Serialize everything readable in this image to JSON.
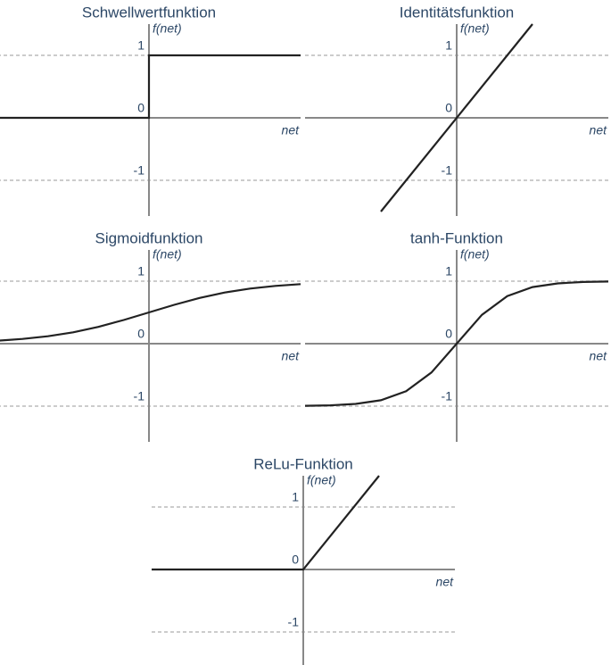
{
  "chart_data": [
    {
      "type": "line",
      "title": "Schwellwertfunktion",
      "y_label": "f(net)",
      "x_label": "net",
      "x": [
        -3,
        0,
        0,
        3
      ],
      "values": [
        0,
        0,
        1,
        1
      ],
      "color": "#222222",
      "xlim": [
        -3,
        3
      ],
      "ylim": [
        -1.5,
        1.5
      ],
      "yticks": [
        -1,
        0,
        1
      ],
      "grid": true
    },
    {
      "type": "line",
      "title": "Identitätsfunktion",
      "y_label": "f(net)",
      "x_label": "net",
      "x": [
        -1.5,
        1.5
      ],
      "values": [
        -1.5,
        1.5
      ],
      "color": "#222222",
      "xlim": [
        -3,
        3
      ],
      "ylim": [
        -1.5,
        1.5
      ],
      "yticks": [
        -1,
        0,
        1
      ],
      "grid": true
    },
    {
      "type": "line",
      "title": "Sigmoidfunktion",
      "y_label": "f(net)",
      "x_label": "net",
      "x": [
        -3,
        -2.5,
        -2,
        -1.5,
        -1,
        -0.5,
        0,
        0.5,
        1,
        1.5,
        2,
        2.5,
        3
      ],
      "values": [
        0.047,
        0.076,
        0.119,
        0.182,
        0.269,
        0.378,
        0.5,
        0.622,
        0.731,
        0.818,
        0.881,
        0.924,
        0.953
      ],
      "color": "#222222",
      "xlim": [
        -3,
        3
      ],
      "ylim": [
        -1.5,
        1.5
      ],
      "yticks": [
        -1,
        0,
        1
      ],
      "grid": true
    },
    {
      "type": "line",
      "title": "tanh-Funktion",
      "y_label": "f(net)",
      "x_label": "net",
      "x": [
        -3,
        -2.5,
        -2,
        -1.5,
        -1,
        -0.5,
        0,
        0.5,
        1,
        1.5,
        2,
        2.5,
        3
      ],
      "values": [
        -0.995,
        -0.987,
        -0.964,
        -0.905,
        -0.762,
        -0.462,
        0,
        0.462,
        0.762,
        0.905,
        0.964,
        0.987,
        0.995
      ],
      "color": "#222222",
      "xlim": [
        -3,
        3
      ],
      "ylim": [
        -1.5,
        1.5
      ],
      "yticks": [
        -1,
        0,
        1
      ],
      "grid": true
    },
    {
      "type": "line",
      "title": "ReLu-Funktion",
      "y_label": "f(net)",
      "x_label": "net",
      "x": [
        -3,
        0,
        1.5
      ],
      "values": [
        0,
        0,
        1.5
      ],
      "color": "#222222",
      "xlim": [
        -3,
        3
      ],
      "ylim": [
        -1.5,
        1.5
      ],
      "yticks": [
        -1,
        0,
        1
      ],
      "grid": true
    }
  ]
}
